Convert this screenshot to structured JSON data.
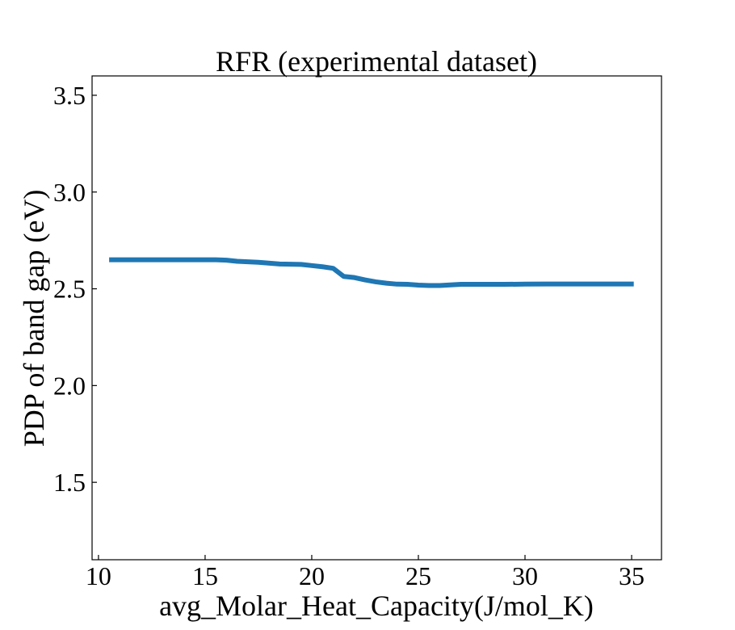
{
  "chart_data": {
    "type": "line",
    "title": "RFR (experimental dataset)",
    "xlabel": "avg_Molar_Heat_Capacity(J/mol_K)",
    "ylabel": "PDP of band gap (eV)",
    "xlim": [
      9.7,
      36.4
    ],
    "ylim": [
      1.1,
      3.6
    ],
    "xticks": [
      10,
      15,
      20,
      25,
      30,
      35
    ],
    "yticks": [
      1.5,
      2.0,
      2.5,
      3.0,
      3.5
    ],
    "xtick_labels": [
      "10",
      "15",
      "20",
      "25",
      "30",
      "35"
    ],
    "ytick_labels": [
      "1.5",
      "2.0",
      "2.5",
      "3.0",
      "3.5"
    ],
    "grid": false,
    "series": [
      {
        "color": "#1f77b4",
        "x": [
          10.5,
          12.0,
          14.0,
          15.5,
          16.0,
          16.5,
          17.5,
          18.5,
          19.5,
          20.0,
          20.5,
          21.0,
          21.5,
          22.0,
          22.5,
          23.0,
          23.5,
          24.0,
          24.5,
          25.0,
          25.5,
          26.0,
          26.5,
          27.0,
          28.0,
          29.0,
          30.0,
          31.0,
          33.0,
          35.1
        ],
        "y": [
          2.65,
          2.65,
          2.65,
          2.65,
          2.648,
          2.642,
          2.637,
          2.628,
          2.626,
          2.62,
          2.614,
          2.606,
          2.564,
          2.558,
          2.546,
          2.536,
          2.529,
          2.524,
          2.523,
          2.519,
          2.517,
          2.517,
          2.52,
          2.523,
          2.523,
          2.523,
          2.524,
          2.525,
          2.525,
          2.525
        ]
      }
    ]
  }
}
